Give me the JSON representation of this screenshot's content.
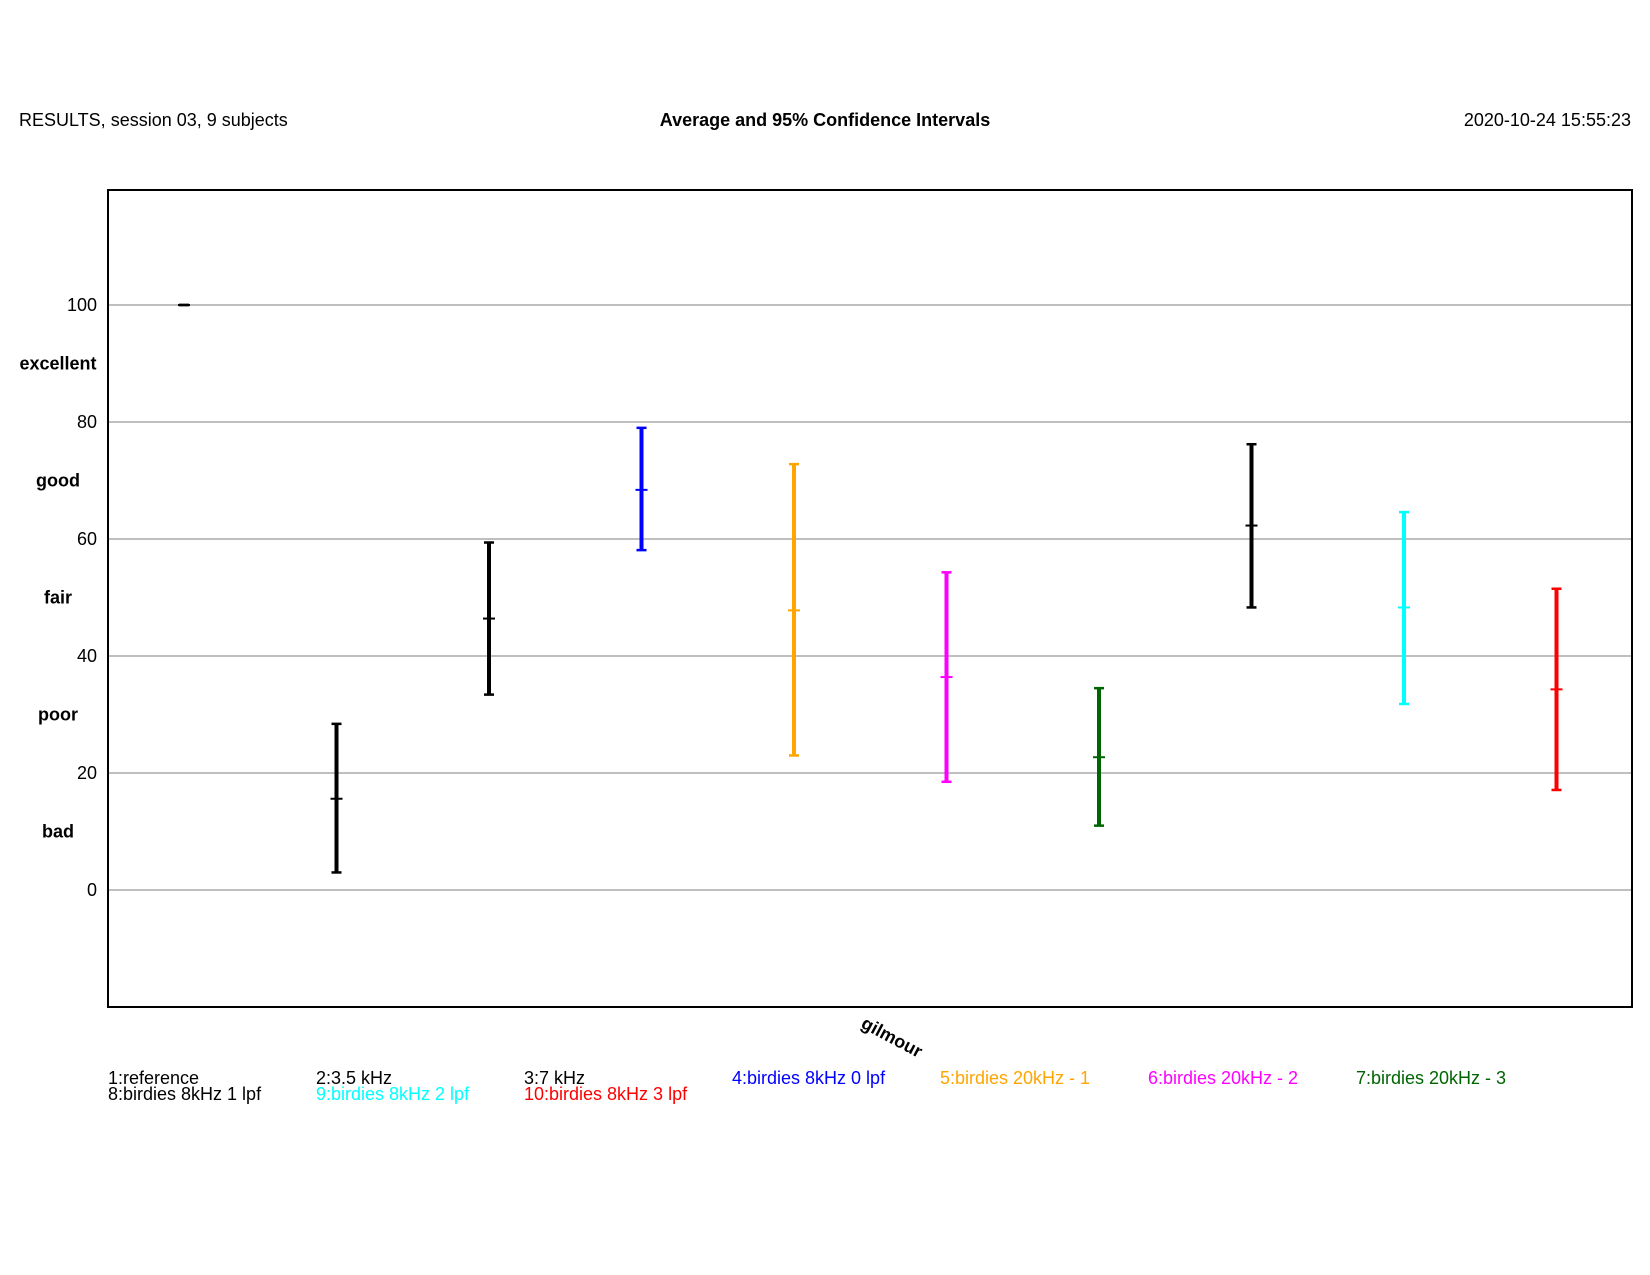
{
  "header": {
    "left": "RESULTS,  session 03,  9 subjects",
    "center": "Average and 95% Confidence Intervals",
    "right": "2020-10-24 15:55:23"
  },
  "chart_data": {
    "type": "errorbar",
    "title": "Average and 95% Confidence Intervals",
    "xlabel": "gilmour",
    "ylabel": "",
    "ylim": [
      -20,
      120
    ],
    "yticks": [
      0,
      20,
      40,
      60,
      80,
      100
    ],
    "categories_scale": [
      {
        "label": "excellent",
        "y": 90
      },
      {
        "label": "good",
        "y": 70
      },
      {
        "label": "fair",
        "y": 50
      },
      {
        "label": "poor",
        "y": 30
      },
      {
        "label": "bad",
        "y": 10
      }
    ],
    "grid": true,
    "series": [
      {
        "name": "1:reference",
        "index": 1,
        "mean": 100,
        "low": 100,
        "high": 100,
        "color": "#000000"
      },
      {
        "name": "2:3.5 kHz",
        "index": 2,
        "mean": 15.6,
        "low": 3,
        "high": 28.4,
        "color": "#000000"
      },
      {
        "name": "3:7 kHz",
        "index": 3,
        "mean": 46.4,
        "low": 33.4,
        "high": 59.4,
        "color": "#000000"
      },
      {
        "name": "4:birdies 8kHz 0 lpf",
        "index": 4,
        "mean": 68.4,
        "low": 58.1,
        "high": 79,
        "color": "#0000ff"
      },
      {
        "name": "5:birdies 20kHz - 1",
        "index": 5,
        "mean": 47.8,
        "low": 23,
        "high": 72.8,
        "color": "#ffa500"
      },
      {
        "name": "6:birdies 20kHz - 2",
        "index": 6,
        "mean": 36.4,
        "low": 18.5,
        "high": 54.3,
        "color": "#ff00ff"
      },
      {
        "name": "7:birdies 20kHz - 3",
        "index": 7,
        "mean": 22.7,
        "low": 11,
        "high": 34.5,
        "color": "#006400"
      },
      {
        "name": "8:birdies 8kHz 1 lpf",
        "index": 8,
        "mean": 62.3,
        "low": 48.3,
        "high": 76.2,
        "color": "#000000"
      },
      {
        "name": "9:birdies 8kHz 2 lpf",
        "index": 9,
        "mean": 48.3,
        "low": 31.8,
        "high": 64.6,
        "color": "#00ffff"
      },
      {
        "name": "10:birdies 8kHz 3 lpf",
        "index": 10,
        "mean": 34.3,
        "low": 17.1,
        "high": 51.5,
        "color": "#ff0000"
      }
    ]
  }
}
